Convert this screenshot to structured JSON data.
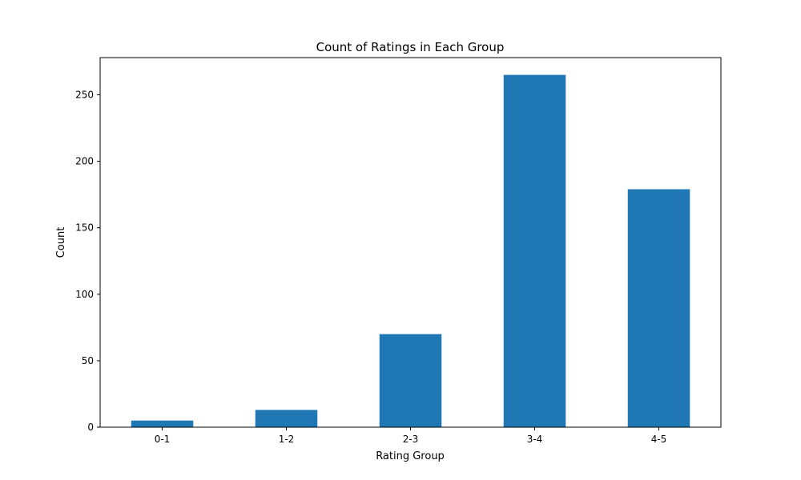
{
  "chart_data": {
    "type": "bar",
    "title": "Count of Ratings in Each Group",
    "xlabel": "Rating Group",
    "ylabel": "Count",
    "categories": [
      "0-1",
      "1-2",
      "2-3",
      "3-4",
      "4-5"
    ],
    "values": [
      5,
      13,
      70,
      265,
      179
    ],
    "ylim": [
      0,
      278
    ],
    "yticks": [
      0,
      50,
      100,
      150,
      200,
      250
    ],
    "grid": false,
    "bar_color": "#1f77b4"
  }
}
